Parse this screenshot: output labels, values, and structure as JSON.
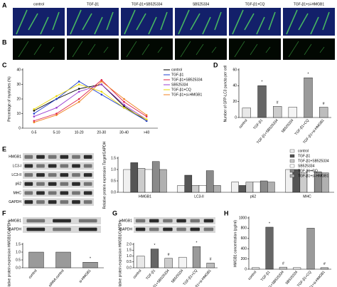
{
  "panel_labels": [
    "A",
    "B",
    "C",
    "D",
    "E",
    "F",
    "G",
    "H"
  ],
  "images": {
    "columns": [
      "control",
      "TGF-β1",
      "TGF-β1+SB525334",
      "SB525334",
      "TGF-β1+CQ",
      "TGF-β1+si-HMGB1"
    ]
  },
  "blots": [
    {
      "rows": [
        "HMGB1",
        "LC3-I",
        "LC3-II",
        "p62",
        "MHC",
        "GAPDH"
      ]
    },
    {
      "rows": [
        "HMGB1",
        "GAPDH"
      ]
    },
    {
      "rows": [
        "HMGB1",
        "GAPDH"
      ]
    }
  ],
  "chart_data": [
    {
      "type": "line",
      "y_label": "Percentage of myotubes (%)",
      "categories": [
        "0-5",
        "5-10",
        "10-20",
        "20-30",
        "30-40",
        ">40"
      ],
      "ylim": [
        0,
        40
      ],
      "yticks": [
        0,
        10,
        20,
        30,
        40
      ],
      "legend": "right",
      "series": [
        {
          "name": "control",
          "color": "#000000",
          "values": [
            12,
            20,
            27,
            30,
            15,
            5
          ]
        },
        {
          "name": "TGF-β1",
          "color": "#1f3fd0",
          "values": [
            10,
            20,
            32,
            23,
            14,
            5
          ]
        },
        {
          "name": "TGF-β1+SB525334",
          "color": "#e0204a",
          "values": [
            5,
            10,
            20,
            33,
            18,
            8
          ]
        },
        {
          "name": "SB525334",
          "color": "#9a3fd0",
          "values": [
            8,
            14,
            25,
            30,
            16,
            6
          ]
        },
        {
          "name": "TGF-β1+CQ",
          "color": "#e8d800",
          "values": [
            13,
            22,
            30,
            25,
            14,
            6
          ]
        },
        {
          "name": "TGF-β1+si-HMGB1",
          "color": "#f08020",
          "values": [
            4,
            9,
            18,
            32,
            20,
            9
          ]
        }
      ]
    },
    {
      "type": "bar",
      "y_label": "Number of GFP-LC3 puncta per cell",
      "categories": [
        "control",
        "TGF-β1",
        "TGF-β1+SB525334",
        "SB525334",
        "TGF-β1+CQ",
        "TGF-β1+si-HMGB1"
      ],
      "values": [
        12,
        40,
        14,
        13,
        50,
        13
      ],
      "markers": [
        null,
        "*",
        "#",
        null,
        "*",
        "#"
      ],
      "colors": [
        "#e8e8e8",
        "#666666",
        "#cccccc",
        "#f4f4f4",
        "#9a9a9a",
        "#bdbdbd"
      ],
      "ylim": [
        0,
        60
      ],
      "yticks": [
        0,
        20,
        40,
        60
      ]
    },
    {
      "type": "bar",
      "y_label": "Relative protein expression Target/GAPDH",
      "categories": [
        "HMGB1",
        "LC3-II",
        "p62",
        "MHC"
      ],
      "ylim": [
        0,
        1.5
      ],
      "yticks": [
        {
          "value": 0,
          "label": "0.0"
        },
        {
          "value": 0.5,
          "label": "0.5"
        },
        {
          "value": 1,
          "label": "1.0"
        },
        {
          "value": 1.5,
          "label": "1.5"
        }
      ],
      "legend": "upper right",
      "series": [
        {
          "name": "control",
          "color": "#f0f0f0",
          "values": [
            1.0,
            0.3,
            0.45,
            1.0
          ]
        },
        {
          "name": "TGF-β1",
          "color": "#555555",
          "values": [
            1.3,
            0.75,
            0.3,
            1.0
          ]
        },
        {
          "name": "TGF-β1+SB525334",
          "color": "#cccccc",
          "values": [
            1.05,
            0.3,
            0.45,
            0.85
          ]
        },
        {
          "name": "SB525334",
          "color": "#ffffff",
          "values": [
            1.0,
            0.3,
            0.45,
            0.95
          ]
        },
        {
          "name": "TGF-β1+CQ",
          "color": "#8a8a8a",
          "values": [
            1.35,
            0.95,
            0.5,
            0.9
          ]
        },
        {
          "name": "TGF-β1+si-HMGB1",
          "color": "#b0b0b0",
          "values": [
            1.0,
            0.3,
            0.45,
            0.85
          ]
        }
      ]
    },
    {
      "type": "bar",
      "y_label": "Relative protein expression HMGB1/GAPDH",
      "categories": [
        "control",
        "siRNA control",
        "si-HMGB1"
      ],
      "values": [
        1.0,
        1.0,
        0.35
      ],
      "markers": [
        null,
        null,
        "*"
      ],
      "colors": [
        "#9a9a9a",
        "#9a9a9a",
        "#9a9a9a"
      ],
      "ylim": [
        0,
        1.5
      ],
      "yticks": [
        {
          "value": 0,
          "label": "0.0"
        },
        {
          "value": 0.5,
          "label": "0.5"
        },
        {
          "value": 1,
          "label": "1.0"
        },
        {
          "value": 1.5,
          "label": "1.5"
        }
      ]
    },
    {
      "type": "bar",
      "y_label": "Relative protein expression HMGB1/GAPDH",
      "categories": [
        "control",
        "TGF-β1",
        "TGF-β1+SB525334",
        "SB525334",
        "TGF-β1+CQ",
        "TGF-β1+si-HMGB1"
      ],
      "values": [
        1.0,
        1.6,
        0.8,
        0.9,
        1.8,
        0.4
      ],
      "markers": [
        null,
        "*",
        "#",
        null,
        "*",
        "#"
      ],
      "colors": [
        "#e8e8e8",
        "#666666",
        "#cccccc",
        "#f4f4f4",
        "#9a9a9a",
        "#bdbdbd"
      ],
      "ylim": [
        0,
        2
      ],
      "yticks": [
        {
          "value": 0,
          "label": "0.0"
        },
        {
          "value": 0.5,
          "label": "0.5"
        },
        {
          "value": 1,
          "label": "1.0"
        },
        {
          "value": 1.5,
          "label": "1.5"
        },
        {
          "value": 2,
          "label": "2.0"
        }
      ]
    },
    {
      "type": "bar",
      "y_label": "HMGB1 concentration (pg/ml)",
      "categories": [
        "control",
        "TGF-β1",
        "TGF-β1+SB525334",
        "SB525334",
        "TGF-β1+CQ",
        "TGF-β1+si-HMGB1"
      ],
      "values": [
        30,
        820,
        40,
        30,
        800,
        30
      ],
      "markers": [
        null,
        "*",
        "#",
        null,
        null,
        "#"
      ],
      "colors": [
        "#e8e8e8",
        "#666666",
        "#cccccc",
        "#f4f4f4",
        "#9a9a9a",
        "#bdbdbd"
      ],
      "ylim": [
        0,
        1000
      ],
      "yticks": [
        0,
        200,
        400,
        600,
        800,
        1000
      ]
    }
  ]
}
